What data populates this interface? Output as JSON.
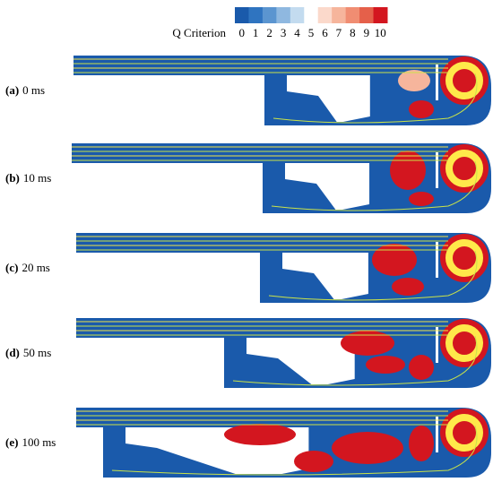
{
  "colorbar": {
    "title": "Q Criterion",
    "ticks": [
      0,
      1,
      2,
      3,
      4,
      5,
      6,
      7,
      8,
      9,
      10
    ],
    "colors": [
      "#1a5aab",
      "#2f74c0",
      "#5b95d0",
      "#8fb8e0",
      "#c3dbef",
      "#ffffff",
      "#fbd9cb",
      "#f6b59c",
      "#f08d72",
      "#e5604a",
      "#d3161f"
    ]
  },
  "panels": [
    {
      "letter": "(a)",
      "time": "0 ms"
    },
    {
      "letter": "(b)",
      "time": "10 ms"
    },
    {
      "letter": "(c)",
      "time": "20 ms"
    },
    {
      "letter": "(d)",
      "time": "50 ms"
    },
    {
      "letter": "(e)",
      "time": "100 ms"
    }
  ]
}
